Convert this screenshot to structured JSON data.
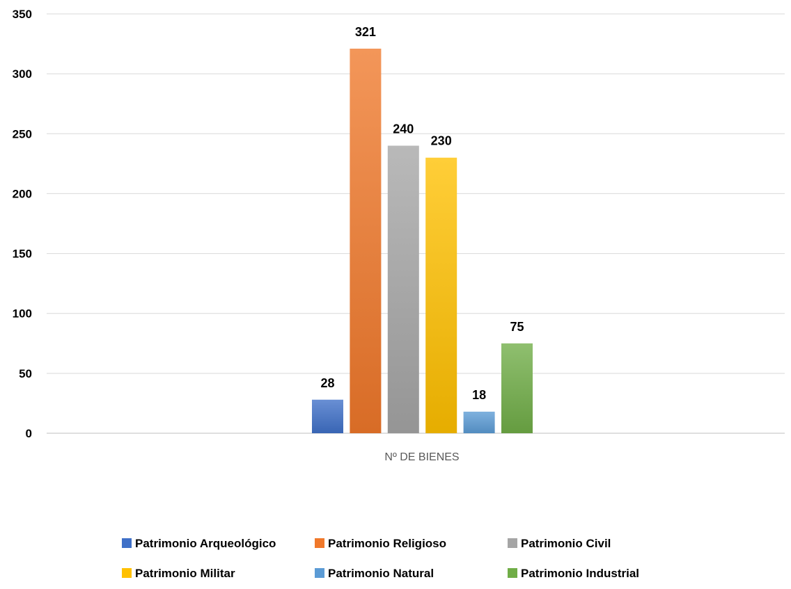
{
  "chart_data": {
    "type": "bar",
    "categories": [
      "Nº DE BIENES"
    ],
    "series": [
      {
        "name": "Patrimonio Arqueológico",
        "values": [
          28
        ],
        "color": "#3f70c8"
      },
      {
        "name": "Patrimonio Religioso",
        "values": [
          321
        ],
        "color": "#f0782a"
      },
      {
        "name": "Patrimonio Civil",
        "values": [
          240
        ],
        "color": "#a5a5a5"
      },
      {
        "name": "Patrimonio Militar",
        "values": [
          230
        ],
        "color": "#ffc000"
      },
      {
        "name": "Patrimonio Natural",
        "values": [
          18
        ],
        "color": "#5b9bd5"
      },
      {
        "name": "Patrimonio Industrial",
        "values": [
          75
        ],
        "color": "#70ad47"
      }
    ],
    "ylim": [
      0,
      350
    ],
    "yticks": [
      0,
      50,
      100,
      150,
      200,
      250,
      300,
      350
    ],
    "grid": true,
    "legend": "bottom",
    "data_labels": true
  }
}
